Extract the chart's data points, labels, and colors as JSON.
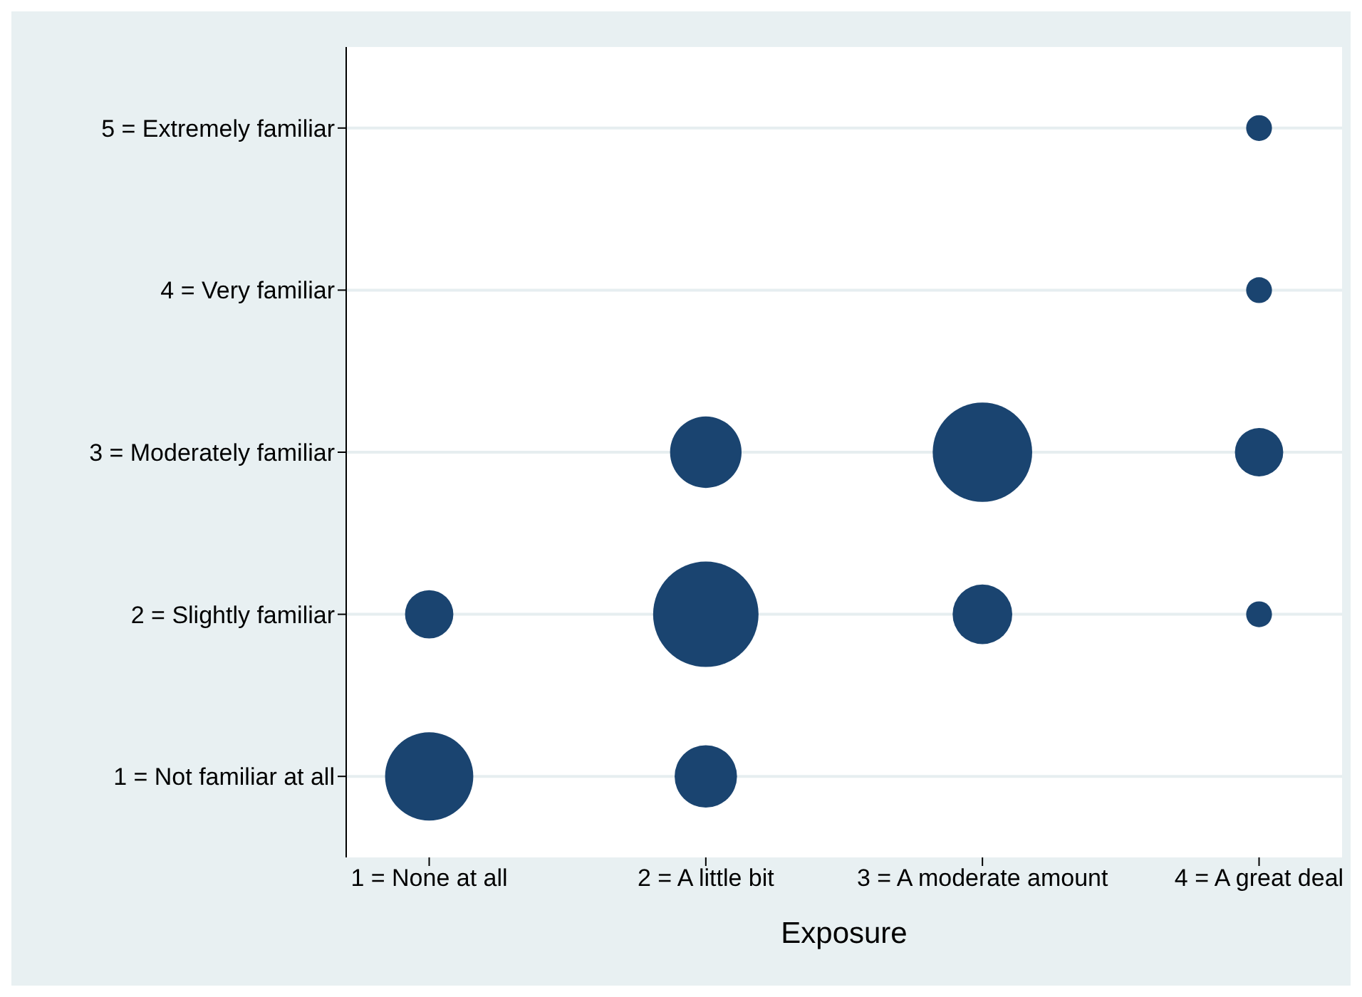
{
  "chart_data": {
    "type": "bubble",
    "xlabel": "Exposure",
    "x": [
      1,
      2,
      1,
      2,
      3,
      4,
      2,
      3,
      4,
      4,
      4
    ],
    "values": [
      1,
      1,
      2,
      2,
      2,
      2,
      3,
      3,
      3,
      4,
      5
    ],
    "sizes": [
      0.7,
      0.35,
      0.21,
      1,
      0.32,
      0.06,
      0.46,
      0.89,
      0.21,
      0.06,
      0.06
    ],
    "color": "#1a4470",
    "xlim": [
      0.7,
      4.3
    ],
    "xticks": [
      {
        "value": 1,
        "label": "1 = None at all"
      },
      {
        "value": 2,
        "label": "2 = A little bit"
      },
      {
        "value": 3,
        "label": "3 = A moderate amount"
      },
      {
        "value": 4,
        "label": "4 = A great deal"
      }
    ],
    "ylim": [
      0.5,
      5.5
    ],
    "yticks": [
      {
        "value": 1,
        "label": "1 = Not familiar at all"
      },
      {
        "value": 2,
        "label": "2 = Slightly familiar"
      },
      {
        "value": 3,
        "label": "3 = Moderately familiar"
      },
      {
        "value": 4,
        "label": "4 = Very familiar"
      },
      {
        "value": 5,
        "label": "5 = Extremely familiar"
      }
    ],
    "grid": "y"
  }
}
